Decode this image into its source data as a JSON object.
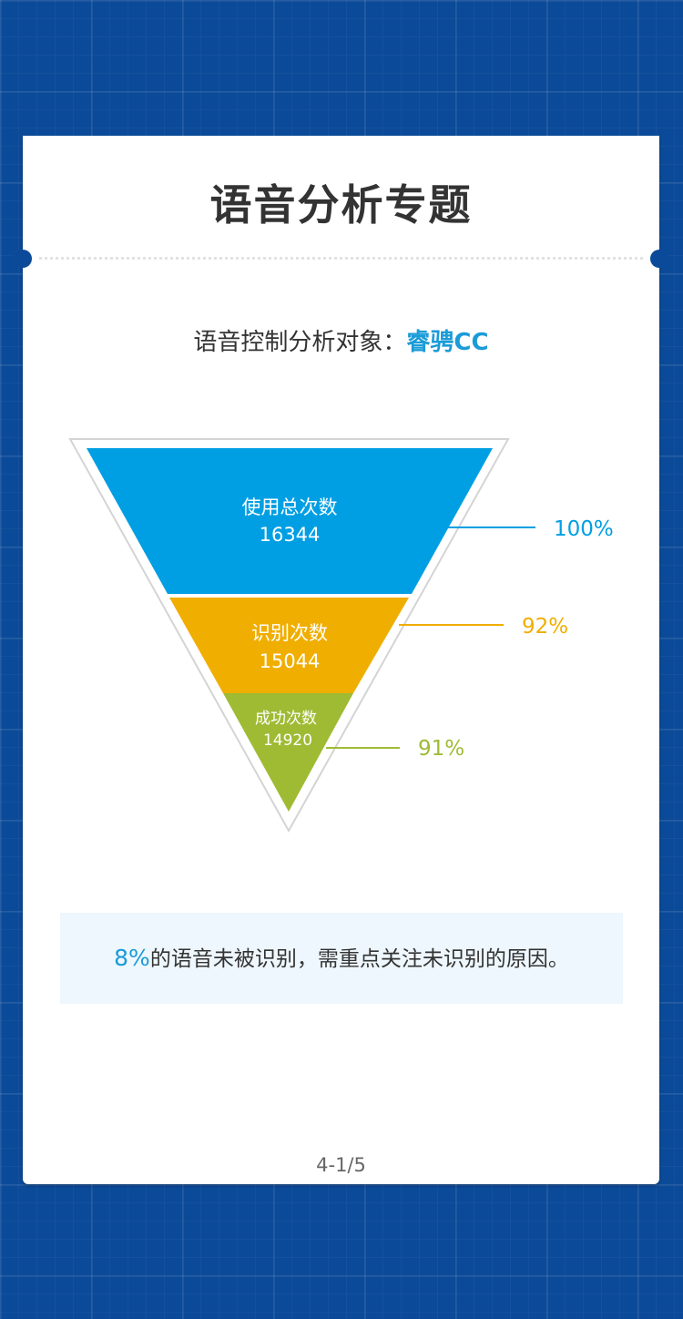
{
  "header": {
    "title": "语音分析专题"
  },
  "subject": {
    "label": "语音控制分析对象：",
    "value": "睿骋CC"
  },
  "chart_data": {
    "type": "funnel",
    "stages": [
      {
        "label": "使用总次数",
        "value": 16344,
        "percent_label": "100%",
        "color": "#009fe3"
      },
      {
        "label": "识别次数",
        "value": 15044,
        "percent_label": "92%",
        "color": "#f0ae00"
      },
      {
        "label": "成功次数",
        "value": 14920,
        "percent_label": "91%",
        "color": "#9fbb34"
      }
    ]
  },
  "callout": {
    "highlight": "8%",
    "text": "的语音未被识别，需重点关注未识别的原因。"
  },
  "footer": {
    "page": "4-1/5"
  }
}
